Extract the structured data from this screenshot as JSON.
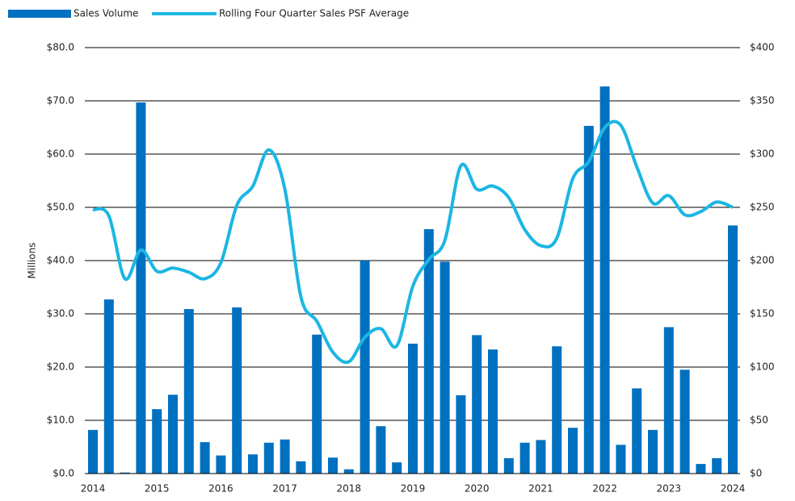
{
  "chart_data": {
    "type": "bar_line",
    "y_label": "Millions",
    "categories": [
      "2014",
      null,
      null,
      null,
      "2015",
      null,
      null,
      null,
      "2016",
      null,
      null,
      null,
      "2017",
      null,
      null,
      null,
      "2018",
      null,
      null,
      null,
      "2019",
      null,
      null,
      null,
      "2020",
      null,
      null,
      null,
      "2021",
      null,
      null,
      null,
      "2022",
      null,
      null,
      null,
      "2023",
      null,
      null,
      null,
      "2024"
    ],
    "series": [
      {
        "name": "Sales Volume",
        "type": "bar",
        "color": "#0070c0",
        "values": [
          8.2,
          32.7,
          0.2,
          69.7,
          12.1,
          14.8,
          30.9,
          5.9,
          3.4,
          31.2,
          3.6,
          5.8,
          6.4,
          2.3,
          26.1,
          3.0,
          0.8,
          40.0,
          8.9,
          2.1,
          24.4,
          45.9,
          39.8,
          14.7,
          26.0,
          23.3,
          2.9,
          5.8,
          6.3,
          23.9,
          8.6,
          65.3,
          72.7,
          5.4,
          16.0,
          8.2,
          27.5,
          19.5,
          1.8,
          2.9,
          46.6
        ]
      },
      {
        "name": "Rolling Four Quarter Sales PSF Average",
        "type": "line",
        "axis": "y2",
        "color": "#1cb6e3",
        "values": [
          248,
          242,
          183,
          210,
          190,
          193,
          189,
          183,
          198,
          252,
          270,
          304,
          267,
          166,
          143,
          114,
          105,
          128,
          136,
          120,
          176,
          201,
          219,
          289,
          267,
          270,
          259,
          229,
          214,
          221,
          277,
          293,
          325,
          327,
          288,
          254,
          261,
          243,
          246,
          255,
          250
        ]
      }
    ],
    "ylim": [
      0,
      80
    ],
    "yticks": [
      {
        "value": 0,
        "label": "$0.0"
      },
      {
        "value": 10,
        "label": "$10.0"
      },
      {
        "value": 20,
        "label": "$20.0"
      },
      {
        "value": 30,
        "label": "$30.0"
      },
      {
        "value": 40,
        "label": "$40.0"
      },
      {
        "value": 50,
        "label": "$50.0"
      },
      {
        "value": 60,
        "label": "$60.0"
      },
      {
        "value": 70,
        "label": "$70.0"
      },
      {
        "value": 80,
        "label": "$80.0"
      }
    ],
    "y2lim": [
      0,
      400
    ],
    "y2ticks": [
      {
        "value": 0,
        "label": "$0"
      },
      {
        "value": 50,
        "label": "$50"
      },
      {
        "value": 100,
        "label": "$100"
      },
      {
        "value": 150,
        "label": "$150"
      },
      {
        "value": 200,
        "label": "$200"
      },
      {
        "value": 250,
        "label": "$250"
      },
      {
        "value": 300,
        "label": "$300"
      },
      {
        "value": 350,
        "label": "$350"
      },
      {
        "value": 400,
        "label": "$400"
      }
    ],
    "grid": true
  }
}
